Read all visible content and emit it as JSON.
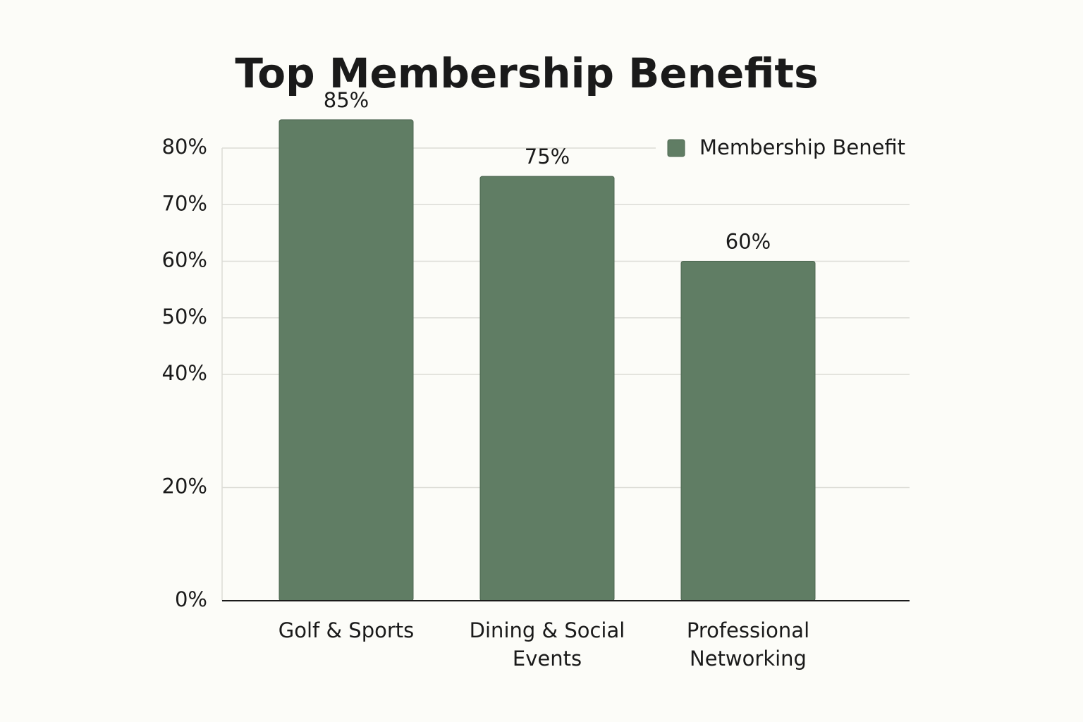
{
  "chart_data": {
    "type": "bar",
    "title": "Top Membership Benefits",
    "categories": [
      "Golf & Sports",
      "Dining & Social Events",
      "Professional Networking"
    ],
    "series": [
      {
        "name": "Membership Benefit",
        "color": "#607d64",
        "values": [
          85,
          75,
          60
        ],
        "value_labels": [
          "85%",
          "75%",
          "60%"
        ]
      }
    ],
    "ylim": [
      0,
      80
    ],
    "yticks": [
      {
        "value": 0,
        "label": "0%"
      },
      {
        "value": 20,
        "label": "20%"
      },
      {
        "value": 40,
        "label": "40%"
      },
      {
        "value": 50,
        "label": "50%"
      },
      {
        "value": 60,
        "label": "60%"
      },
      {
        "value": 70,
        "label": "70%"
      },
      {
        "value": 80,
        "label": "80%"
      }
    ],
    "grid": true,
    "legend": "top-right"
  }
}
